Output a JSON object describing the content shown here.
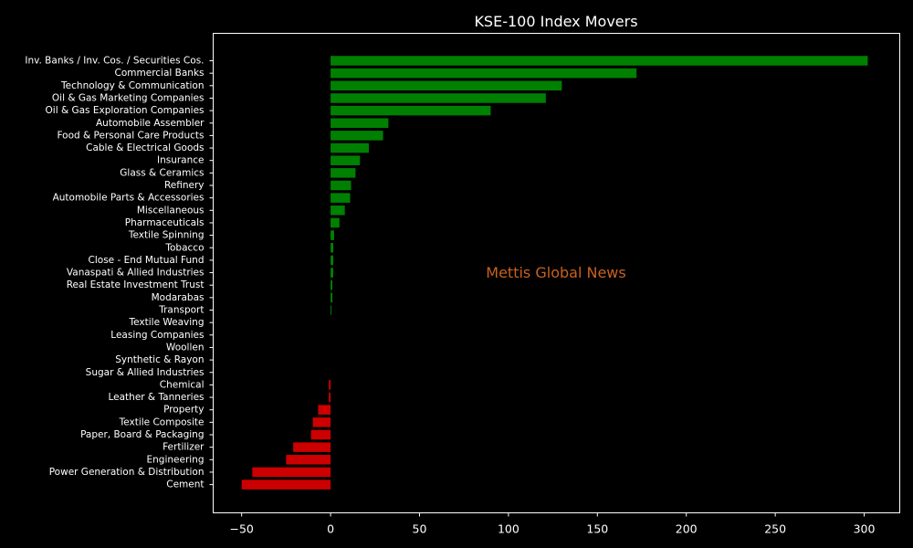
{
  "chart_data": {
    "type": "bar",
    "orientation": "horizontal",
    "title": "KSE-100 Index Movers",
    "watermark": "Mettis Global News",
    "xlim": [
      -66,
      320
    ],
    "xticks": [
      -50,
      0,
      50,
      100,
      150,
      200,
      250,
      300
    ],
    "grid": false,
    "colors": {
      "background": "#000000",
      "positive": "#008000",
      "negative": "#cc0000",
      "text": "#ffffff",
      "axes": "#ffffff",
      "watermark": "#c8621e"
    },
    "categories": [
      "Inv. Banks / Inv. Cos. / Securities Cos.",
      "Commercial Banks",
      "Technology & Communication",
      "Oil & Gas Marketing Companies",
      "Oil & Gas Exploration Companies",
      "Automobile Assembler",
      "Food & Personal Care Products",
      "Cable & Electrical Goods",
      "Insurance",
      "Glass & Ceramics",
      "Refinery",
      "Automobile Parts & Accessories",
      "Miscellaneous",
      "Pharmaceuticals",
      "Textile Spinning",
      "Tobacco",
      "Close - End Mutual Fund",
      "Vanaspati & Allied Industries",
      "Real Estate Investment Trust",
      "Modarabas",
      "Transport",
      "Textile Weaving",
      "Leasing Companies",
      "Woollen",
      "Synthetic & Rayon",
      "Sugar & Allied Industries",
      "Chemical",
      "Leather & Tanneries",
      "Property",
      "Textile Composite",
      "Paper, Board & Packaging",
      "Fertilizer",
      "Engineering",
      "Power Generation & Distribution",
      "Cement"
    ],
    "values": [
      302,
      172,
      130,
      121,
      90,
      32.5,
      29.5,
      21.5,
      16.5,
      14,
      11.5,
      11,
      8,
      5,
      2,
      1.5,
      1.5,
      1.5,
      1,
      1,
      0.5,
      0,
      0,
      0,
      0,
      0,
      -1,
      -1,
      -7,
      -10,
      -11,
      -21,
      -25,
      -44,
      -50
    ]
  }
}
